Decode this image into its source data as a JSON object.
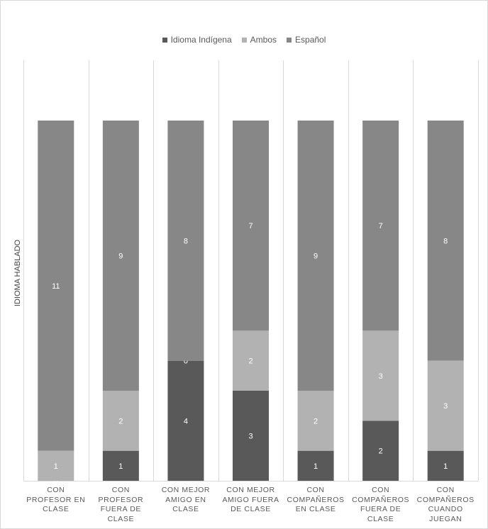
{
  "chart_data": {
    "type": "bar",
    "stacked": true,
    "title": "",
    "xlabel": "",
    "ylabel": "IDIOMA HABLADO",
    "categories": [
      "CON PROFESOR EN CLASE",
      "CON PROFESOR FUERA DE CLASE",
      "CON MEJOR AMIGO EN CLASE",
      "CON MEJOR AMIGO FUERA DE CLASE",
      "CON COMPAÑEROS EN CLASE",
      "CON COMPAÑEROS FUERA DE CLASE",
      "CON COMPAÑEROS CUANDO JUEGAN"
    ],
    "series": [
      {
        "name": "Idioma Indígena",
        "color": "#595959",
        "values": [
          0,
          1,
          4,
          3,
          1,
          2,
          1
        ]
      },
      {
        "name": "Ambos",
        "color": "#b2b2b2",
        "values": [
          1,
          2,
          0,
          2,
          2,
          3,
          3
        ]
      },
      {
        "name": "Español",
        "color": "#878787",
        "values": [
          11,
          9,
          8,
          7,
          9,
          7,
          8
        ]
      }
    ],
    "ylim": [
      0,
      12
    ],
    "grid": false,
    "legend": "top"
  }
}
